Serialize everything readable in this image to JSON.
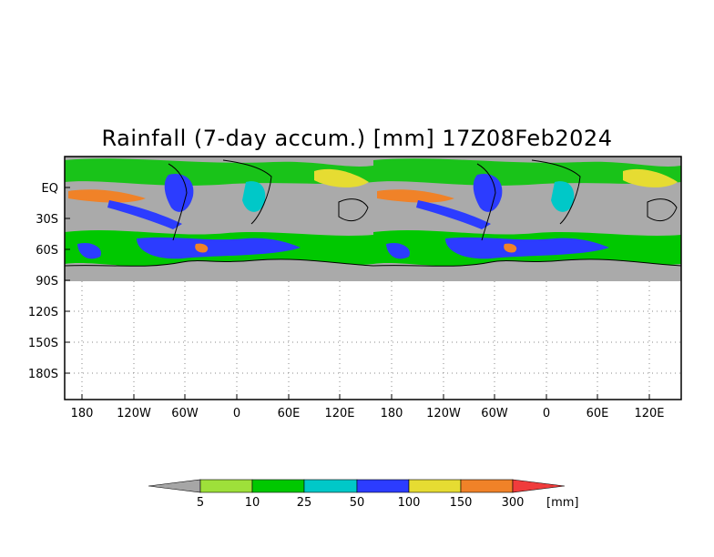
{
  "title": "Rainfall (7-day accum.) [mm] 17Z08Feb2024",
  "map": {
    "lat_labels": [
      "EQ",
      "30S",
      "60S",
      "90S",
      "120S",
      "150S",
      "180S"
    ],
    "lon_labels": [
      "180",
      "120W",
      "60W",
      "0",
      "60E",
      "120E",
      "180",
      "120W",
      "60W",
      "0",
      "60E",
      "120E"
    ],
    "no_data_color": "#aaaaaa"
  },
  "legend": {
    "unit": "[mm]",
    "under_color": "#a6a6a6",
    "over_color": "#f03c3c",
    "bins": [
      {
        "color": "#9ee03a"
      },
      {
        "color": "#00c800"
      },
      {
        "color": "#00c8c8"
      },
      {
        "color": "#2c3cff"
      },
      {
        "color": "#e6dc32"
      },
      {
        "color": "#f08228"
      }
    ],
    "ticks": [
      "5",
      "10",
      "25",
      "50",
      "100",
      "150",
      "300"
    ]
  }
}
